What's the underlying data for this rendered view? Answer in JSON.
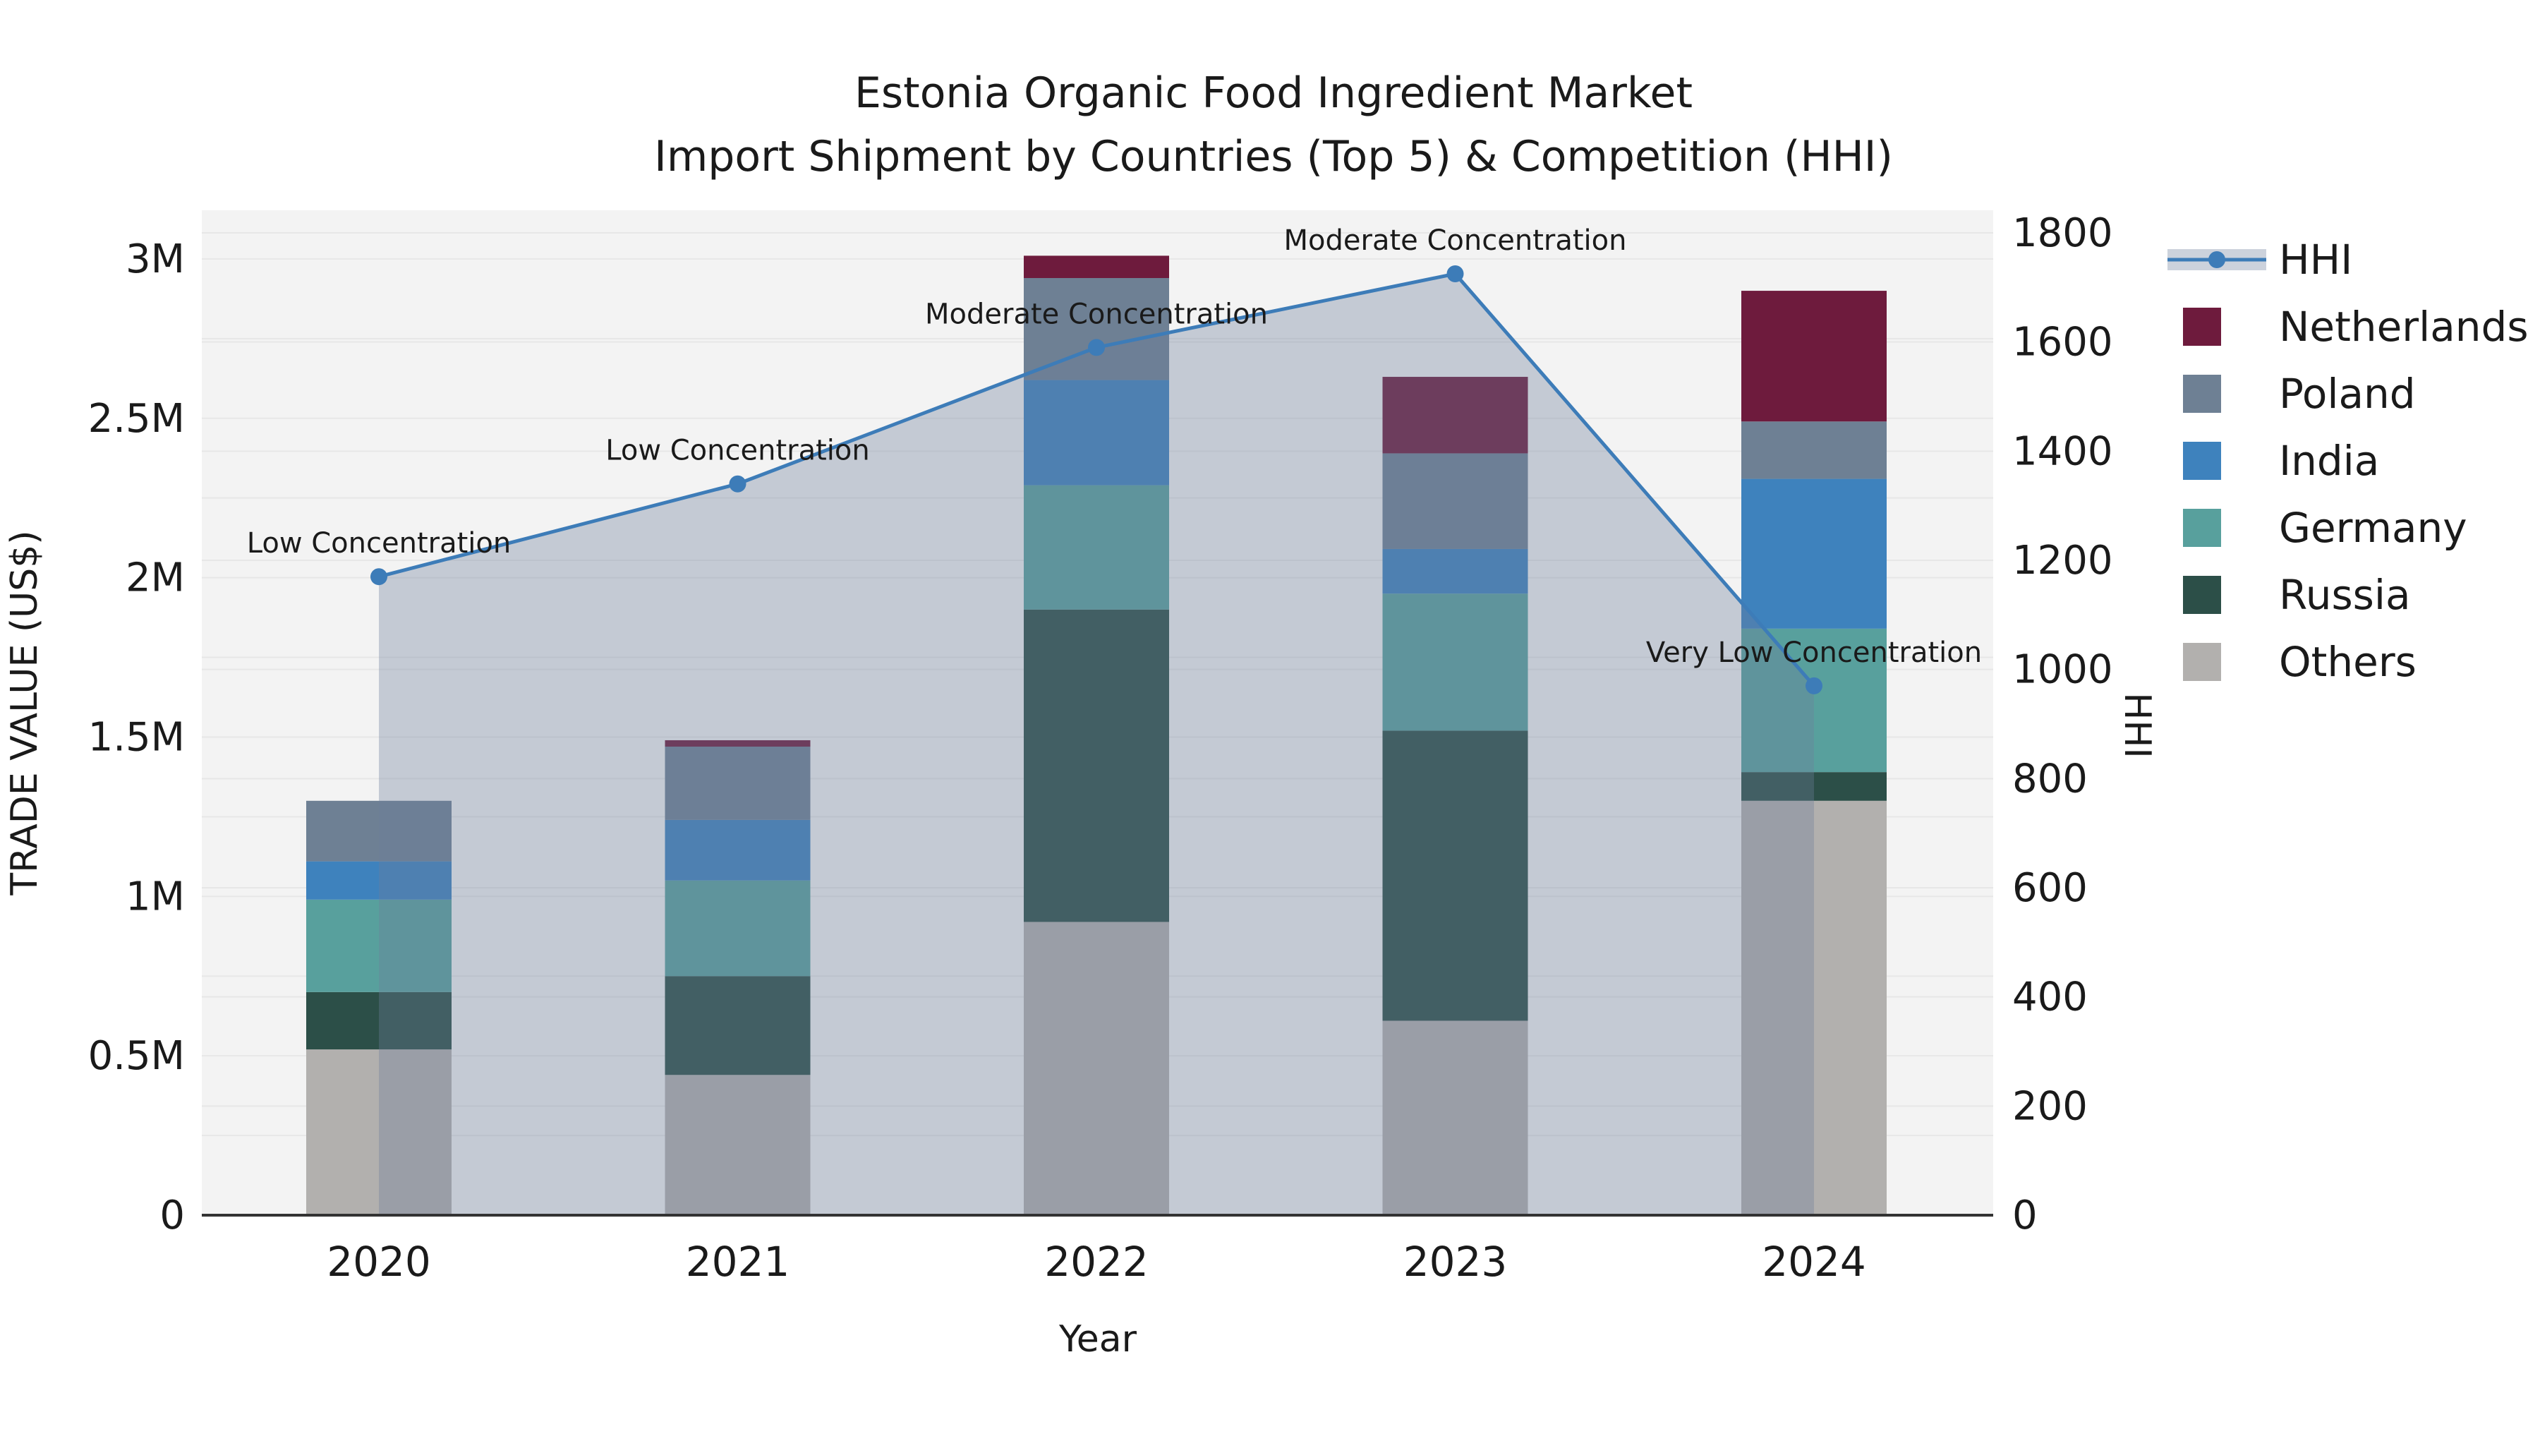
{
  "title": {
    "line1": "Estonia Organic Food Ingredient Market",
    "line2": "Import Shipment by Countries (Top 5) & Competition (HHI)"
  },
  "axes": {
    "x_label": "Year",
    "y_left_label": "TRADE VALUE (US$)",
    "y_right_label": "HHI",
    "y_left_ticks": [
      "0",
      "0.5M",
      "1M",
      "1.5M",
      "2M",
      "2.5M",
      "3M"
    ],
    "y_right_ticks": [
      "0",
      "200",
      "400",
      "600",
      "800",
      "1000",
      "1200",
      "1400",
      "1600",
      "1800"
    ]
  },
  "legend": {
    "items": [
      {
        "label": "HHI",
        "type": "line",
        "color": "#3d7cb8"
      },
      {
        "label": "Netherlands",
        "type": "patch",
        "color": "#6e1b3d"
      },
      {
        "label": "Poland",
        "type": "patch",
        "color": "#6e8094"
      },
      {
        "label": "India",
        "type": "patch",
        "color": "#3e82bd"
      },
      {
        "label": "Germany",
        "type": "patch",
        "color": "#58a09d"
      },
      {
        "label": "Russia",
        "type": "patch",
        "color": "#2c4f48"
      },
      {
        "label": "Others",
        "type": "patch",
        "color": "#b2b0ae"
      }
    ]
  },
  "chart_data": {
    "type": "bar+line",
    "title": "Estonia Organic Food Ingredient Market — Import Shipment by Countries (Top 5) & Competition (HHI)",
    "categories": [
      "2020",
      "2021",
      "2022",
      "2023",
      "2024"
    ],
    "bar_unit": "million US$ (trade value, left axis)",
    "stack_order": "bottom to top",
    "series": [
      {
        "name": "Others",
        "color": "#b2b0ae",
        "values": [
          0.52,
          0.44,
          0.92,
          0.61,
          1.3
        ]
      },
      {
        "name": "Russia",
        "color": "#2c4f48",
        "values": [
          0.18,
          0.31,
          0.98,
          0.91,
          0.09
        ]
      },
      {
        "name": "Germany",
        "color": "#58a09d",
        "values": [
          0.29,
          0.3,
          0.39,
          0.43,
          0.45
        ]
      },
      {
        "name": "India",
        "color": "#3e82bd",
        "values": [
          0.12,
          0.19,
          0.33,
          0.14,
          0.47
        ]
      },
      {
        "name": "Poland",
        "color": "#6e8094",
        "values": [
          0.19,
          0.23,
          0.32,
          0.3,
          0.18
        ]
      },
      {
        "name": "Netherlands",
        "color": "#6e1b3d",
        "values": [
          0.0,
          0.02,
          0.07,
          0.24,
          0.41
        ]
      }
    ],
    "bar_totals": [
      1.3,
      1.49,
      3.01,
      2.63,
      2.9
    ],
    "line_series": {
      "name": "HHI",
      "axis": "right",
      "color": "#3d7cb8",
      "values": [
        1170,
        1340,
        1590,
        1725,
        970
      ]
    },
    "annotations": [
      {
        "category": "2020",
        "text": "Low Concentration"
      },
      {
        "category": "2021",
        "text": "Low Concentration"
      },
      {
        "category": "2022",
        "text": "Moderate Concentration"
      },
      {
        "category": "2023",
        "text": "Moderate Concentration"
      },
      {
        "category": "2024",
        "text": "Very Low Concentration"
      }
    ],
    "ylim_left": [
      0,
      3.15
    ],
    "ylim_right": [
      0,
      1800
    ],
    "grid": true,
    "legend_position": "right of plot"
  },
  "colors": {
    "plot_bg": "#f3f3f3",
    "grid": "#e7e7e7",
    "area_fill": "#6d7e9b",
    "area_fill_opacity": 0.35,
    "hhi_line": "#3d7cb8",
    "legend_band": "#ccd2dc",
    "text": "#1a1a1a",
    "axis_line": "#333333"
  }
}
